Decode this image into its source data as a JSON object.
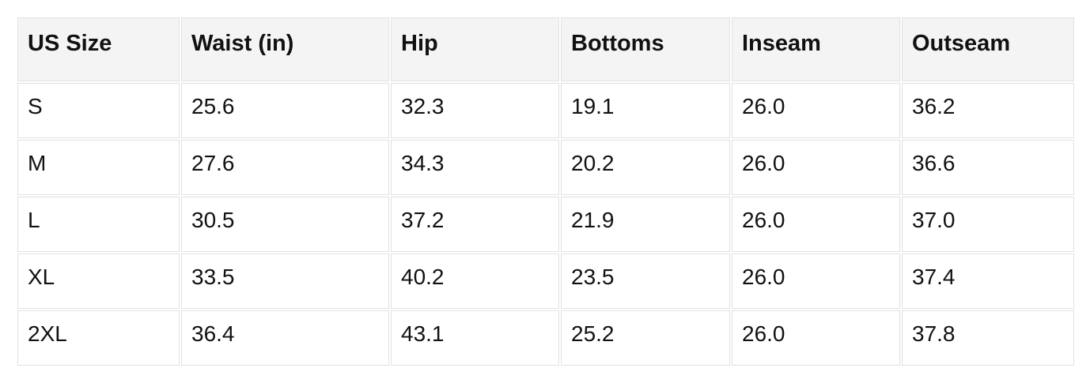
{
  "colors": {
    "page_background": "#ffffff",
    "header_background": "#f4f4f4",
    "cell_border": "#e1e1e1",
    "text": "#111111"
  },
  "chart_data": {
    "type": "table",
    "columns": [
      "US Size",
      "Waist (in)",
      "Hip",
      "Bottoms",
      "Inseam",
      "Outseam"
    ],
    "rows": [
      [
        "S",
        "25.6",
        "32.3",
        "19.1",
        "26.0",
        "36.2"
      ],
      [
        "M",
        "27.6",
        "34.3",
        "20.2",
        "26.0",
        "36.6"
      ],
      [
        "L",
        "30.5",
        "37.2",
        "21.9",
        "26.0",
        "37.0"
      ],
      [
        "XL",
        "33.5",
        "40.2",
        "23.5",
        "26.0",
        "37.4"
      ],
      [
        "2XL",
        "36.4",
        "43.1",
        "25.2",
        "26.0",
        "37.8"
      ]
    ]
  }
}
